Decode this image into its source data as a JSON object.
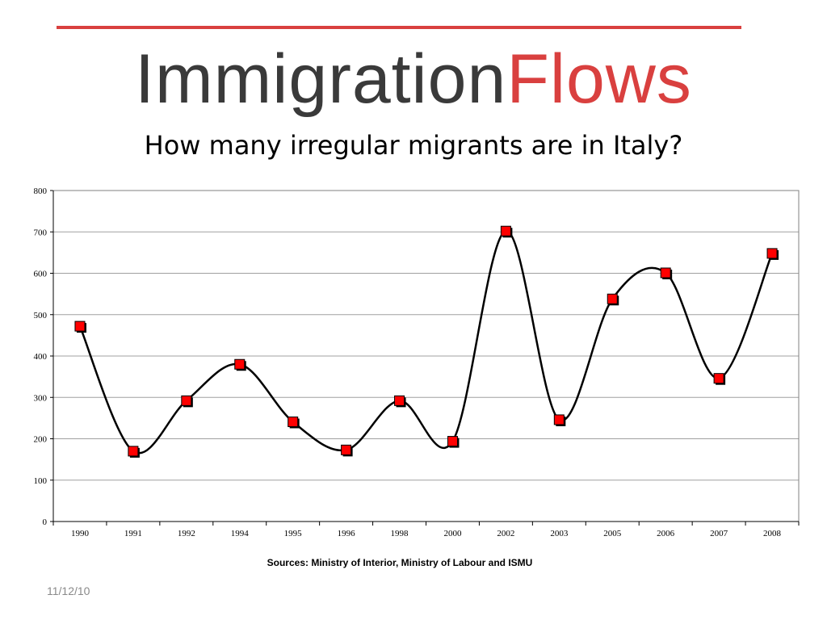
{
  "header": {
    "brand_part1": "Immigration",
    "brand_part2": "Flows",
    "subtitle": "How many irregular migrants are in Italy?"
  },
  "footer": {
    "source": "Sources: Ministry of Interior, Ministry of Labour and ISMU",
    "date": "11/12/10"
  },
  "colors": {
    "accent": "#d9403f",
    "marker": "#ff0000",
    "line": "#000000",
    "grid": "#a0a0a0"
  },
  "chart_data": {
    "type": "line",
    "smoothed": true,
    "title": "",
    "xlabel": "",
    "ylabel": "",
    "categories": [
      "1990",
      "1991",
      "1992",
      "1994",
      "1995",
      "1996",
      "1998",
      "2000",
      "2002",
      "2003",
      "2005",
      "2006",
      "2007",
      "2008"
    ],
    "values": [
      472,
      170,
      292,
      380,
      241,
      173,
      292,
      194,
      702,
      246,
      538,
      601,
      346,
      648
    ],
    "ylim": [
      0,
      800
    ],
    "yticks": [
      0,
      100,
      200,
      300,
      400,
      500,
      600,
      700,
      800
    ],
    "grid": "horizontal",
    "legend": "none",
    "marker": "square"
  }
}
